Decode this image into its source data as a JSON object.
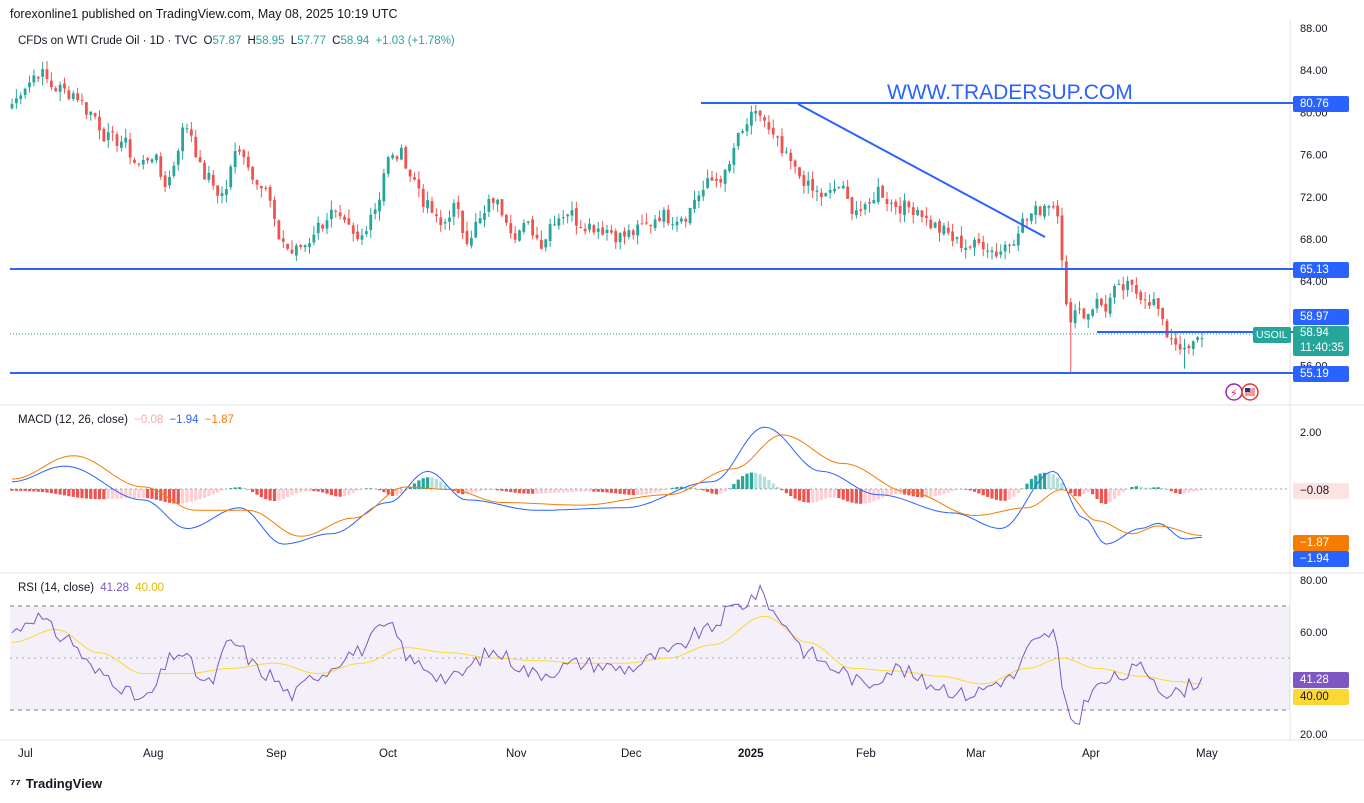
{
  "header": {
    "publisher": "forexonline1 published on TradingView.com, May 08, 2025 10:19 UTC"
  },
  "symbol_legend": {
    "name": "CFDs on WTI Crude Oil · 1D · TVC",
    "open_label": "O",
    "open": "57.87",
    "high_label": "H",
    "high": "58.95",
    "low_label": "L",
    "low": "57.77",
    "close_label": "C",
    "close": "58.94",
    "change": "+1.03 (+1.78%)"
  },
  "watermark": "WWW.TRADERSUP.COM",
  "price_badges": {
    "resistance": "80.76",
    "support_mid": "65.13",
    "hline": "58.97",
    "symbol_tag": "USOIL",
    "last": "58.94",
    "countdown": "11:40:35",
    "support_low": "55.19"
  },
  "macd_legend": {
    "name": "MACD (12, 26, close)",
    "histogram": "−0.08",
    "macd": "−1.94",
    "signal": "−1.87"
  },
  "macd_badges": {
    "histogram": "−0.08",
    "signal": "−1.87",
    "macd": "−1.94"
  },
  "rsi_legend": {
    "name": "RSI (14, close)",
    "rsi": "41.28",
    "ma": "40.00"
  },
  "rsi_badges": {
    "rsi": "41.28",
    "ma": "40.00"
  },
  "footer": {
    "brand": "TradingView"
  },
  "colors": {
    "bull": "#26a69a",
    "bear": "#ef5350",
    "hline": "#2962ff",
    "macd": "#2962ff",
    "signal": "#f57c00",
    "rsi": "#7e57c2",
    "rsi_ma": "#fdd835"
  },
  "chart_data": [
    {
      "type": "candlestick",
      "title": "CFDs on WTI Crude Oil · 1D · TVC",
      "x_tick_labels": [
        "Jul",
        "Aug",
        "Sep",
        "Oct",
        "Nov",
        "Dec",
        "2025",
        "Feb",
        "Mar",
        "Apr",
        "May"
      ],
      "y_tick_labels": [
        "88.00",
        "84.00",
        "80.00",
        "76.00",
        "72.00",
        "68.00",
        "64.00",
        "56.00"
      ],
      "ylim": [
        54.0,
        88.0
      ],
      "anchors": [
        {
          "i": 0,
          "p": 80.8
        },
        {
          "i": 3,
          "p": 82.6
        },
        {
          "i": 6,
          "p": 83.8
        },
        {
          "i": 10,
          "p": 82.3
        },
        {
          "i": 14,
          "p": 81.8
        },
        {
          "i": 18,
          "p": 80.0
        },
        {
          "i": 22,
          "p": 77.5
        },
        {
          "i": 25,
          "p": 77.3
        },
        {
          "i": 29,
          "p": 75.0
        },
        {
          "i": 32,
          "p": 76.0
        },
        {
          "i": 35,
          "p": 73.3
        },
        {
          "i": 40,
          "p": 78.7
        },
        {
          "i": 44,
          "p": 74.0
        },
        {
          "i": 48,
          "p": 72.2
        },
        {
          "i": 52,
          "p": 76.8
        },
        {
          "i": 55,
          "p": 74.2
        },
        {
          "i": 58,
          "p": 72.5
        },
        {
          "i": 61,
          "p": 68.2
        },
        {
          "i": 64,
          "p": 66.7
        },
        {
          "i": 67,
          "p": 67.5
        },
        {
          "i": 70,
          "p": 69.2
        },
        {
          "i": 73,
          "p": 70.4
        },
        {
          "i": 76,
          "p": 69.2
        },
        {
          "i": 79,
          "p": 67.8
        },
        {
          "i": 83,
          "p": 71.0
        },
        {
          "i": 86,
          "p": 75.5
        },
        {
          "i": 89,
          "p": 76.0
        },
        {
          "i": 92,
          "p": 73.5
        },
        {
          "i": 95,
          "p": 71.0
        },
        {
          "i": 98,
          "p": 69.2
        },
        {
          "i": 101,
          "p": 71.0
        },
        {
          "i": 104,
          "p": 68.2
        },
        {
          "i": 107,
          "p": 69.7
        },
        {
          "i": 110,
          "p": 71.8
        },
        {
          "i": 112,
          "p": 70.7
        },
        {
          "i": 115,
          "p": 68.6
        },
        {
          "i": 118,
          "p": 69.2
        },
        {
          "i": 121,
          "p": 67.7
        },
        {
          "i": 124,
          "p": 70.0
        },
        {
          "i": 127,
          "p": 70.6
        },
        {
          "i": 130,
          "p": 69.5
        },
        {
          "i": 133,
          "p": 69.2
        },
        {
          "i": 136,
          "p": 68.9
        },
        {
          "i": 139,
          "p": 68.2
        },
        {
          "i": 142,
          "p": 68.6
        },
        {
          "i": 145,
          "p": 69.3
        },
        {
          "i": 148,
          "p": 70.3
        },
        {
          "i": 151,
          "p": 70.0
        },
        {
          "i": 154,
          "p": 70.3
        },
        {
          "i": 157,
          "p": 72.3
        },
        {
          "i": 160,
          "p": 73.5
        },
        {
          "i": 163,
          "p": 74.0
        },
        {
          "i": 166,
          "p": 77.5
        },
        {
          "i": 169,
          "p": 79.4
        },
        {
          "i": 171,
          "p": 79.8
        },
        {
          "i": 174,
          "p": 77.5
        },
        {
          "i": 177,
          "p": 75.6
        },
        {
          "i": 180,
          "p": 74.0
        },
        {
          "i": 183,
          "p": 72.5
        },
        {
          "i": 186,
          "p": 72.0
        },
        {
          "i": 189,
          "p": 73.0
        },
        {
          "i": 192,
          "p": 71.0
        },
        {
          "i": 195,
          "p": 70.6
        },
        {
          "i": 198,
          "p": 72.7
        },
        {
          "i": 201,
          "p": 71.4
        },
        {
          "i": 204,
          "p": 71.0
        },
        {
          "i": 207,
          "p": 70.9
        },
        {
          "i": 210,
          "p": 69.4
        },
        {
          "i": 213,
          "p": 68.7
        },
        {
          "i": 216,
          "p": 67.7
        },
        {
          "i": 219,
          "p": 67.3
        },
        {
          "i": 222,
          "p": 67.6
        },
        {
          "i": 225,
          "p": 66.7
        },
        {
          "i": 228,
          "p": 67.7
        },
        {
          "i": 231,
          "p": 69.6
        },
        {
          "i": 234,
          "p": 70.6
        },
        {
          "i": 237,
          "p": 71.5
        },
        {
          "i": 239,
          "p": 70.8
        },
        {
          "i": 240,
          "p": 66.5
        },
        {
          "i": 241,
          "p": 61.5
        },
        {
          "i": 242,
          "p": 59.6
        },
        {
          "i": 243,
          "p": 61.9
        },
        {
          "i": 245,
          "p": 60.8
        },
        {
          "i": 248,
          "p": 62.0
        },
        {
          "i": 250,
          "p": 61.5
        },
        {
          "i": 252,
          "p": 63.0
        },
        {
          "i": 255,
          "p": 63.4
        },
        {
          "i": 258,
          "p": 62.8
        },
        {
          "i": 261,
          "p": 62.0
        },
        {
          "i": 264,
          "p": 59.0
        },
        {
          "i": 267,
          "p": 58.0
        },
        {
          "i": 268,
          "p": 57.1
        },
        {
          "i": 270,
          "p": 57.9
        },
        {
          "i": 272,
          "p": 58.9
        }
      ]
    },
    {
      "type": "line",
      "title": "MACD (12, 26, close)",
      "y_tick_labels": [
        "2.00"
      ],
      "ylim": [
        -4.5,
        3.5
      ],
      "series": [
        {
          "name": "MACD",
          "anchors": [
            {
              "i": 0,
              "v": 0.2
            },
            {
              "i": 12,
              "v": 0.8
            },
            {
              "i": 30,
              "v": -0.5
            },
            {
              "i": 40,
              "v": -1.6
            },
            {
              "i": 52,
              "v": -0.8
            },
            {
              "i": 62,
              "v": -2.2
            },
            {
              "i": 73,
              "v": -1.8
            },
            {
              "i": 86,
              "v": -0.6
            },
            {
              "i": 95,
              "v": 0.6
            },
            {
              "i": 104,
              "v": -0.5
            },
            {
              "i": 120,
              "v": -0.9
            },
            {
              "i": 140,
              "v": -0.8
            },
            {
              "i": 160,
              "v": 0.2
            },
            {
              "i": 172,
              "v": 2.3
            },
            {
              "i": 185,
              "v": 0.6
            },
            {
              "i": 198,
              "v": -0.3
            },
            {
              "i": 215,
              "v": -1.0
            },
            {
              "i": 226,
              "v": -1.6
            },
            {
              "i": 238,
              "v": 0.6
            },
            {
              "i": 245,
              "v": -1.2
            },
            {
              "i": 250,
              "v": -2.2
            },
            {
              "i": 258,
              "v": -1.6
            },
            {
              "i": 262,
              "v": -1.4
            },
            {
              "i": 268,
              "v": -2.0
            },
            {
              "i": 272,
              "v": -1.94
            }
          ]
        },
        {
          "name": "Signal",
          "anchors": [
            {
              "i": 0,
              "v": 0.3
            },
            {
              "i": 14,
              "v": 1.2
            },
            {
              "i": 30,
              "v": 0.0
            },
            {
              "i": 42,
              "v": -0.9
            },
            {
              "i": 54,
              "v": -0.9
            },
            {
              "i": 66,
              "v": -1.9
            },
            {
              "i": 78,
              "v": -1.2
            },
            {
              "i": 90,
              "v": 0.0
            },
            {
              "i": 100,
              "v": -0.1
            },
            {
              "i": 112,
              "v": -0.6
            },
            {
              "i": 130,
              "v": -0.7
            },
            {
              "i": 150,
              "v": -0.3
            },
            {
              "i": 165,
              "v": 0.7
            },
            {
              "i": 176,
              "v": 2.0
            },
            {
              "i": 190,
              "v": 0.9
            },
            {
              "i": 205,
              "v": -0.2
            },
            {
              "i": 220,
              "v": -1.1
            },
            {
              "i": 232,
              "v": -0.8
            },
            {
              "i": 240,
              "v": -0.1
            },
            {
              "i": 248,
              "v": -1.3
            },
            {
              "i": 256,
              "v": -1.8
            },
            {
              "i": 262,
              "v": -1.5
            },
            {
              "i": 272,
              "v": -1.87
            }
          ]
        }
      ]
    },
    {
      "type": "line",
      "title": "RSI (14, close)",
      "y_tick_labels": [
        "80.00",
        "60.00",
        "20.00"
      ],
      "ylim": [
        20,
        80
      ],
      "series": [
        {
          "name": "RSI",
          "anchors": [
            {
              "i": 0,
              "v": 60
            },
            {
              "i": 5,
              "v": 66
            },
            {
              "i": 12,
              "v": 58
            },
            {
              "i": 20,
              "v": 44
            },
            {
              "i": 30,
              "v": 34
            },
            {
              "i": 38,
              "v": 52
            },
            {
              "i": 45,
              "v": 40
            },
            {
              "i": 50,
              "v": 56
            },
            {
              "i": 58,
              "v": 44
            },
            {
              "i": 64,
              "v": 36
            },
            {
              "i": 70,
              "v": 44
            },
            {
              "i": 78,
              "v": 52
            },
            {
              "i": 86,
              "v": 62
            },
            {
              "i": 92,
              "v": 48
            },
            {
              "i": 100,
              "v": 42
            },
            {
              "i": 110,
              "v": 52
            },
            {
              "i": 120,
              "v": 44
            },
            {
              "i": 130,
              "v": 48
            },
            {
              "i": 140,
              "v": 46
            },
            {
              "i": 150,
              "v": 52
            },
            {
              "i": 158,
              "v": 60
            },
            {
              "i": 166,
              "v": 70
            },
            {
              "i": 171,
              "v": 75
            },
            {
              "i": 176,
              "v": 64
            },
            {
              "i": 182,
              "v": 52
            },
            {
              "i": 188,
              "v": 46
            },
            {
              "i": 195,
              "v": 40
            },
            {
              "i": 202,
              "v": 46
            },
            {
              "i": 210,
              "v": 40
            },
            {
              "i": 218,
              "v": 36
            },
            {
              "i": 228,
              "v": 42
            },
            {
              "i": 234,
              "v": 56
            },
            {
              "i": 238,
              "v": 60
            },
            {
              "i": 241,
              "v": 30
            },
            {
              "i": 243,
              "v": 25
            },
            {
              "i": 247,
              "v": 38
            },
            {
              "i": 252,
              "v": 42
            },
            {
              "i": 258,
              "v": 46
            },
            {
              "i": 265,
              "v": 36
            },
            {
              "i": 272,
              "v": 41.28
            }
          ]
        },
        {
          "name": "RSI MA",
          "anchors": [
            {
              "i": 0,
              "v": 56
            },
            {
              "i": 10,
              "v": 61
            },
            {
              "i": 20,
              "v": 52
            },
            {
              "i": 30,
              "v": 44
            },
            {
              "i": 40,
              "v": 44
            },
            {
              "i": 50,
              "v": 46
            },
            {
              "i": 60,
              "v": 48
            },
            {
              "i": 70,
              "v": 44
            },
            {
              "i": 80,
              "v": 48
            },
            {
              "i": 90,
              "v": 54
            },
            {
              "i": 100,
              "v": 52
            },
            {
              "i": 110,
              "v": 50
            },
            {
              "i": 120,
              "v": 49
            },
            {
              "i": 130,
              "v": 48
            },
            {
              "i": 140,
              "v": 48
            },
            {
              "i": 150,
              "v": 50
            },
            {
              "i": 160,
              "v": 55
            },
            {
              "i": 172,
              "v": 66
            },
            {
              "i": 182,
              "v": 56
            },
            {
              "i": 192,
              "v": 46
            },
            {
              "i": 202,
              "v": 45
            },
            {
              "i": 212,
              "v": 43
            },
            {
              "i": 222,
              "v": 40
            },
            {
              "i": 232,
              "v": 46
            },
            {
              "i": 240,
              "v": 50
            },
            {
              "i": 248,
              "v": 46
            },
            {
              "i": 258,
              "v": 43
            },
            {
              "i": 266,
              "v": 41
            },
            {
              "i": 272,
              "v": 40
            }
          ]
        }
      ]
    }
  ]
}
